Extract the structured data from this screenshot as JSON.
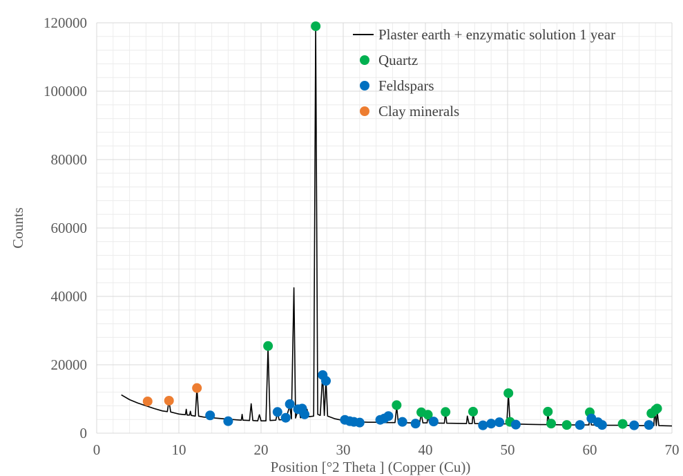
{
  "chart_data": {
    "type": "line",
    "xlabel": "Position [°2 Theta ] (Copper (Cu))",
    "ylabel": "Counts",
    "xlim": [
      0,
      70
    ],
    "ylim": [
      0,
      120000
    ],
    "xticks": [
      0,
      10,
      20,
      30,
      40,
      50,
      60,
      70
    ],
    "yticks": [
      0,
      20000,
      40000,
      60000,
      80000,
      100000,
      120000
    ],
    "grid": true,
    "legend_position": "top-right",
    "legend": [
      {
        "label": "Plaster earth + enzymatic solution 1 year",
        "kind": "line",
        "color": "#000000"
      },
      {
        "label": "Quartz",
        "kind": "marker",
        "color": "#00b050"
      },
      {
        "label": "Feldspars",
        "kind": "marker",
        "color": "#0070c0"
      },
      {
        "label": "Clay minerals",
        "kind": "marker",
        "color": "#ed7d31"
      }
    ],
    "line_series": {
      "name": "Plaster earth + enzymatic solution 1 year",
      "color": "#000000",
      "points": [
        [
          3.0,
          11200
        ],
        [
          4.0,
          9800
        ],
        [
          5.0,
          8800
        ],
        [
          6.0,
          8000
        ],
        [
          7.0,
          7200
        ],
        [
          8.0,
          6500
        ],
        [
          8.6,
          6300
        ],
        [
          8.8,
          9500
        ],
        [
          9.0,
          6200
        ],
        [
          10.0,
          5600
        ],
        [
          10.8,
          5400
        ],
        [
          10.9,
          7000
        ],
        [
          11.0,
          5300
        ],
        [
          11.3,
          5300
        ],
        [
          11.4,
          6400
        ],
        [
          11.5,
          5200
        ],
        [
          12.0,
          5000
        ],
        [
          12.2,
          13200
        ],
        [
          12.4,
          5000
        ],
        [
          13.0,
          4700
        ],
        [
          14.0,
          4500
        ],
        [
          15.0,
          4300
        ],
        [
          16.0,
          4100
        ],
        [
          17.0,
          3900
        ],
        [
          17.6,
          3800
        ],
        [
          17.7,
          5500
        ],
        [
          17.8,
          3800
        ],
        [
          18.6,
          3700
        ],
        [
          18.8,
          8600
        ],
        [
          19.0,
          3700
        ],
        [
          19.6,
          3600
        ],
        [
          19.8,
          5400
        ],
        [
          20.0,
          3600
        ],
        [
          20.6,
          3600
        ],
        [
          20.85,
          25000
        ],
        [
          21.1,
          3700
        ],
        [
          21.8,
          3800
        ],
        [
          22.0,
          6000
        ],
        [
          22.2,
          3900
        ],
        [
          23.0,
          4000
        ],
        [
          23.5,
          8000
        ],
        [
          23.7,
          4200
        ],
        [
          24.0,
          42500
        ],
        [
          24.2,
          4400
        ],
        [
          24.6,
          7500
        ],
        [
          24.8,
          4500
        ],
        [
          25.4,
          5000
        ],
        [
          25.6,
          7000
        ],
        [
          25.8,
          4800
        ],
        [
          26.4,
          5000
        ],
        [
          26.65,
          119000
        ],
        [
          26.9,
          5500
        ],
        [
          27.2,
          5200
        ],
        [
          27.5,
          17500
        ],
        [
          27.7,
          5200
        ],
        [
          27.9,
          15500
        ],
        [
          28.1,
          5000
        ],
        [
          29.0,
          4200
        ],
        [
          30.0,
          3700
        ],
        [
          31.0,
          3500
        ],
        [
          32.0,
          3300
        ],
        [
          33.0,
          3200
        ],
        [
          34.0,
          3200
        ],
        [
          35.0,
          3100
        ],
        [
          36.3,
          3100
        ],
        [
          36.5,
          7800
        ],
        [
          36.7,
          3100
        ],
        [
          38.0,
          3000
        ],
        [
          39.3,
          3000
        ],
        [
          39.5,
          5800
        ],
        [
          39.7,
          3000
        ],
        [
          40.2,
          3000
        ],
        [
          40.3,
          5000
        ],
        [
          40.5,
          3000
        ],
        [
          42.3,
          2900
        ],
        [
          42.45,
          6000
        ],
        [
          42.6,
          2900
        ],
        [
          45.0,
          2800
        ],
        [
          45.1,
          5000
        ],
        [
          45.3,
          2800
        ],
        [
          45.7,
          2800
        ],
        [
          45.8,
          6000
        ],
        [
          46.0,
          2800
        ],
        [
          48.0,
          2700
        ],
        [
          49.9,
          2700
        ],
        [
          50.1,
          11500
        ],
        [
          50.3,
          2700
        ],
        [
          52.0,
          2600
        ],
        [
          54.0,
          2500
        ],
        [
          54.8,
          2500
        ],
        [
          54.9,
          6000
        ],
        [
          55.1,
          2500
        ],
        [
          57.0,
          2400
        ],
        [
          59.9,
          2400
        ],
        [
          60.0,
          5800
        ],
        [
          60.2,
          2400
        ],
        [
          62.0,
          2300
        ],
        [
          64.0,
          2300
        ],
        [
          66.0,
          2200
        ],
        [
          67.8,
          2200
        ],
        [
          67.9,
          6800
        ],
        [
          68.1,
          2200
        ],
        [
          68.2,
          6500
        ],
        [
          68.4,
          2200
        ],
        [
          70.0,
          2100
        ]
      ]
    },
    "marker_series": [
      {
        "name": "Quartz",
        "color": "#00b050",
        "points": [
          [
            20.85,
            25500
          ],
          [
            26.65,
            119000
          ],
          [
            36.5,
            8200
          ],
          [
            39.5,
            6100
          ],
          [
            40.3,
            5400
          ],
          [
            42.45,
            6200
          ],
          [
            45.8,
            6300
          ],
          [
            50.1,
            11700
          ],
          [
            50.3,
            3300
          ],
          [
            54.9,
            6300
          ],
          [
            55.3,
            2800
          ],
          [
            57.2,
            2400
          ],
          [
            60.0,
            6100
          ],
          [
            64.0,
            2700
          ],
          [
            67.5,
            5800
          ],
          [
            68.0,
            6800
          ],
          [
            68.2,
            7200
          ]
        ]
      },
      {
        "name": "Feldspars",
        "color": "#0070c0",
        "points": [
          [
            13.8,
            5200
          ],
          [
            16.0,
            3500
          ],
          [
            22.0,
            6200
          ],
          [
            23.0,
            4500
          ],
          [
            23.5,
            8500
          ],
          [
            24.5,
            7000
          ],
          [
            25.0,
            7200
          ],
          [
            25.3,
            5500
          ],
          [
            27.5,
            17000
          ],
          [
            27.9,
            15300
          ],
          [
            30.2,
            3900
          ],
          [
            30.8,
            3500
          ],
          [
            31.3,
            3300
          ],
          [
            32.0,
            3100
          ],
          [
            34.5,
            3900
          ],
          [
            35.0,
            4300
          ],
          [
            35.5,
            5000
          ],
          [
            37.2,
            3300
          ],
          [
            38.8,
            2800
          ],
          [
            41.0,
            3400
          ],
          [
            47.0,
            2300
          ],
          [
            48.0,
            2800
          ],
          [
            49.0,
            3200
          ],
          [
            51.0,
            2500
          ],
          [
            58.8,
            2400
          ],
          [
            60.2,
            4300
          ],
          [
            61.0,
            3200
          ],
          [
            61.5,
            2400
          ],
          [
            65.4,
            2300
          ],
          [
            67.2,
            2400
          ]
        ]
      },
      {
        "name": "Clay minerals",
        "color": "#ed7d31",
        "points": [
          [
            6.2,
            9300
          ],
          [
            8.8,
            9500
          ],
          [
            12.2,
            13200
          ]
        ]
      }
    ]
  }
}
